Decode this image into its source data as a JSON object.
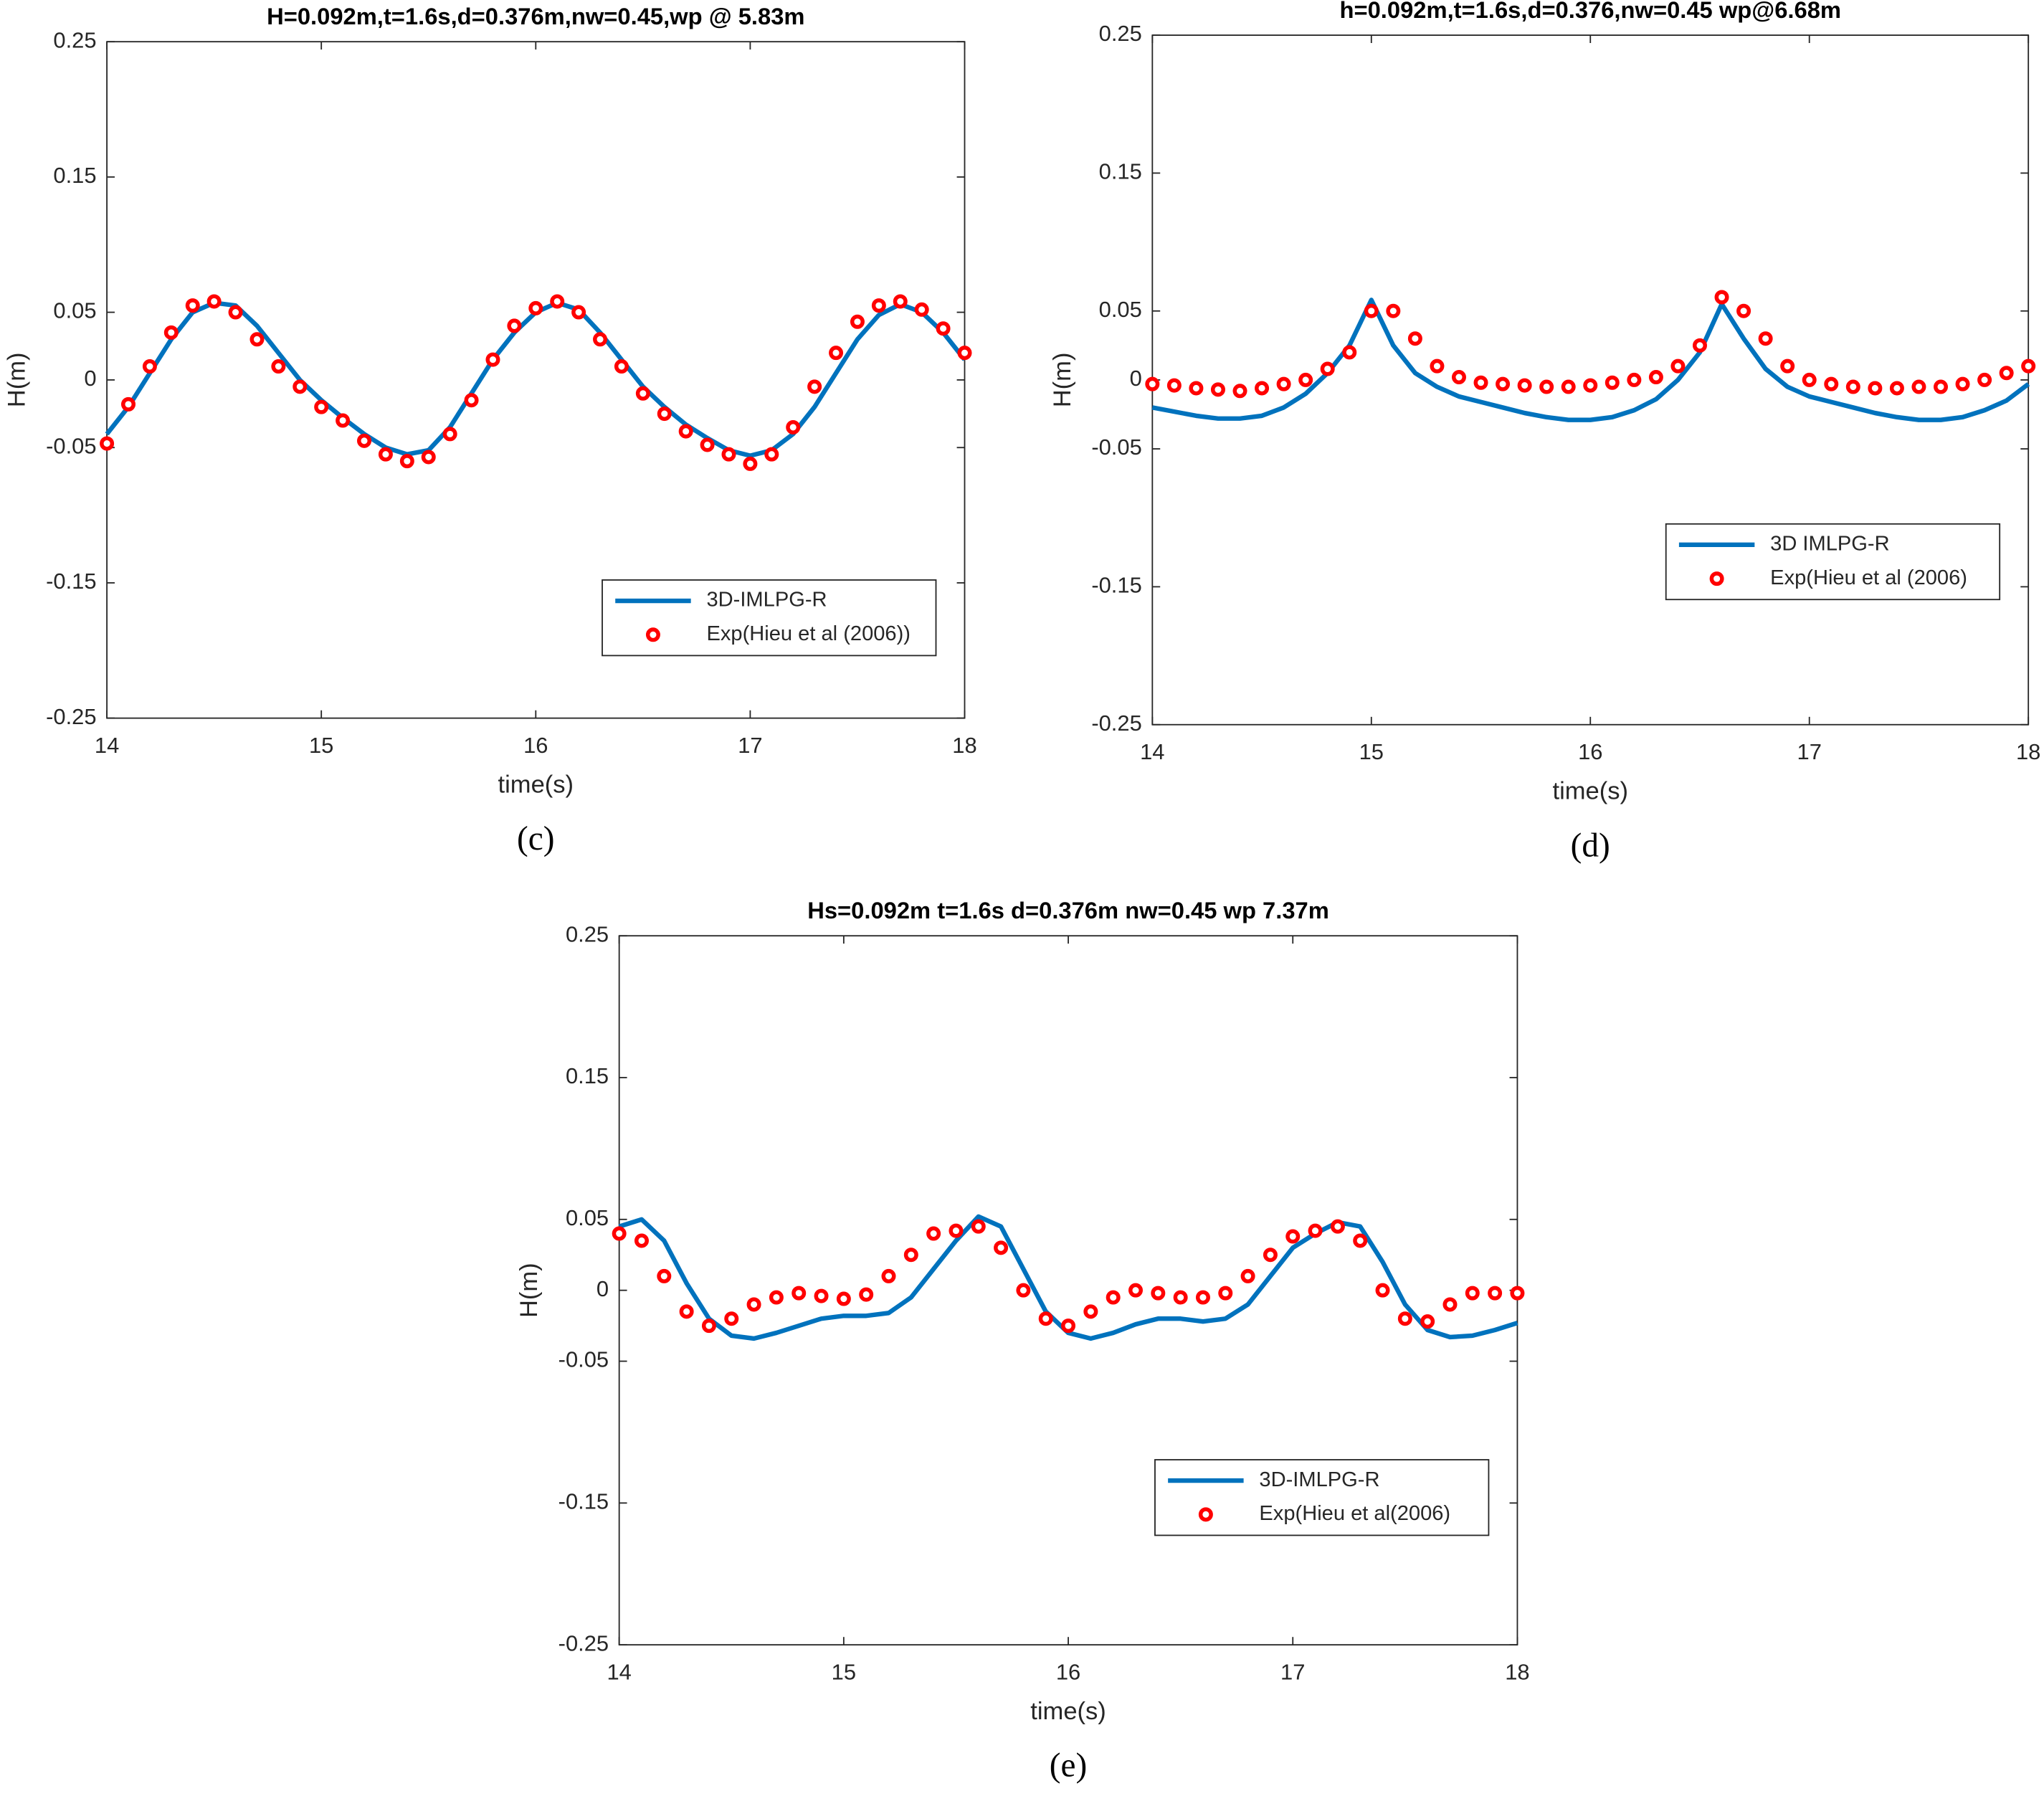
{
  "chart_data": [
    {
      "type": "line",
      "title": "H=0.092m,t=1.6s,d=0.376m,nw=0.45,wp @ 5.83m",
      "label": "(c)",
      "xlabel": "time(s)",
      "ylabel": "H(m)",
      "legend": "lower right",
      "xlim": [
        14,
        18
      ],
      "ylim": [
        -0.25,
        0.25
      ],
      "xticks": [
        14,
        15,
        16,
        17,
        18
      ],
      "yticks": [
        -0.25,
        -0.15,
        -0.05,
        0,
        0.05,
        0.15,
        0.25
      ],
      "x": [
        14,
        14.1,
        14.2,
        14.3,
        14.4,
        14.5,
        14.6,
        14.7,
        14.8,
        14.9,
        15,
        15.1,
        15.2,
        15.3,
        15.4,
        15.5,
        15.6,
        15.7,
        15.8,
        15.9,
        16,
        16.1,
        16.2,
        16.3,
        16.4,
        16.5,
        16.6,
        16.7,
        16.8,
        16.9,
        17,
        17.1,
        17.2,
        17.3,
        17.4,
        17.5,
        17.6,
        17.7,
        17.8,
        17.9,
        18
      ],
      "series": [
        {
          "name": "3D-IMLPG-R",
          "color": "#0072bd",
          "style": "line",
          "values": [
            -0.04,
            -0.02,
            0.005,
            0.03,
            0.05,
            0.057,
            0.055,
            0.04,
            0.02,
            0,
            -0.015,
            -0.028,
            -0.04,
            -0.05,
            -0.055,
            -0.052,
            -0.035,
            -0.01,
            0.015,
            0.035,
            0.05,
            0.057,
            0.052,
            0.035,
            0.015,
            -0.005,
            -0.02,
            -0.033,
            -0.043,
            -0.052,
            -0.056,
            -0.052,
            -0.04,
            -0.02,
            0.005,
            0.03,
            0.048,
            0.056,
            0.05,
            0.035,
            0.015
          ]
        },
        {
          "name": "Exp(Hieu et al (2006))",
          "color": "#ff0000",
          "style": "marker",
          "values": [
            -0.047,
            -0.018,
            0.01,
            0.035,
            0.055,
            0.058,
            0.05,
            0.03,
            0.01,
            -0.005,
            -0.02,
            -0.03,
            -0.045,
            -0.055,
            -0.06,
            -0.057,
            -0.04,
            -0.015,
            0.015,
            0.04,
            0.053,
            0.058,
            0.05,
            0.03,
            0.01,
            -0.01,
            -0.025,
            -0.038,
            -0.048,
            -0.055,
            -0.062,
            -0.055,
            -0.035,
            -0.005,
            0.02,
            0.043,
            0.055,
            0.058,
            0.052,
            0.038,
            0.02
          ]
        }
      ]
    },
    {
      "type": "line",
      "title": "h=0.092m,t=1.6s,d=0.376,nw=0.45 wp@6.68m",
      "label": "(d)",
      "xlabel": "time(s)",
      "ylabel": "H(m)",
      "legend": "lower right",
      "xlim": [
        14,
        18
      ],
      "ylim": [
        -0.25,
        0.25
      ],
      "xticks": [
        14,
        15,
        16,
        17,
        18
      ],
      "yticks": [
        -0.25,
        -0.15,
        -0.05,
        0,
        0.05,
        0.15,
        0.25
      ],
      "x": [
        14,
        14.1,
        14.2,
        14.3,
        14.4,
        14.5,
        14.6,
        14.7,
        14.8,
        14.9,
        15,
        15.1,
        15.2,
        15.3,
        15.4,
        15.5,
        15.6,
        15.7,
        15.8,
        15.9,
        16,
        16.1,
        16.2,
        16.3,
        16.4,
        16.5,
        16.6,
        16.7,
        16.8,
        16.9,
        17,
        17.1,
        17.2,
        17.3,
        17.4,
        17.5,
        17.6,
        17.7,
        17.8,
        17.9,
        18
      ],
      "series": [
        {
          "name": "3D IMLPG-R",
          "color": "#0072bd",
          "style": "line",
          "values": [
            -0.02,
            -0.023,
            -0.026,
            -0.028,
            -0.028,
            -0.026,
            -0.02,
            -0.01,
            0.005,
            0.025,
            0.058,
            0.025,
            0.005,
            -0.005,
            -0.012,
            -0.016,
            -0.02,
            -0.024,
            -0.027,
            -0.029,
            -0.029,
            -0.027,
            -0.022,
            -0.014,
            0,
            0.02,
            0.055,
            0.03,
            0.008,
            -0.005,
            -0.012,
            -0.016,
            -0.02,
            -0.024,
            -0.027,
            -0.029,
            -0.029,
            -0.027,
            -0.022,
            -0.015,
            -0.003
          ]
        },
        {
          "name": "Exp(Hieu et al (2006)",
          "color": "#ff0000",
          "style": "marker",
          "values": [
            -0.003,
            -0.004,
            -0.006,
            -0.007,
            -0.008,
            -0.006,
            -0.003,
            0,
            0.008,
            0.02,
            0.05,
            0.05,
            0.03,
            0.01,
            0.002,
            -0.002,
            -0.003,
            -0.004,
            -0.005,
            -0.005,
            -0.004,
            -0.002,
            0,
            0.002,
            0.01,
            0.025,
            0.06,
            0.05,
            0.03,
            0.01,
            0,
            -0.003,
            -0.005,
            -0.006,
            -0.006,
            -0.005,
            -0.005,
            -0.003,
            0,
            0.005,
            0.01
          ]
        }
      ]
    },
    {
      "type": "line",
      "title": "Hs=0.092m t=1.6s d=0.376m nw=0.45 wp 7.37m",
      "label": "(e)",
      "xlabel": "time(s)",
      "ylabel": "H(m)",
      "legend": "lower right",
      "xlim": [
        14,
        18
      ],
      "ylim": [
        -0.25,
        0.25
      ],
      "xticks": [
        14,
        15,
        16,
        17,
        18
      ],
      "yticks": [
        -0.25,
        -0.15,
        -0.05,
        0,
        0.05,
        0.15,
        0.25
      ],
      "x": [
        14,
        14.1,
        14.2,
        14.3,
        14.4,
        14.5,
        14.6,
        14.7,
        14.8,
        14.9,
        15,
        15.1,
        15.2,
        15.3,
        15.4,
        15.5,
        15.6,
        15.7,
        15.8,
        15.9,
        16,
        16.1,
        16.2,
        16.3,
        16.4,
        16.5,
        16.6,
        16.7,
        16.8,
        16.9,
        17,
        17.1,
        17.2,
        17.3,
        17.4,
        17.5,
        17.6,
        17.7,
        17.8,
        17.9,
        18
      ],
      "series": [
        {
          "name": "3D-IMLPG-R",
          "color": "#0072bd",
          "style": "line",
          "values": [
            0.045,
            0.05,
            0.035,
            0.005,
            -0.02,
            -0.032,
            -0.034,
            -0.03,
            -0.025,
            -0.02,
            -0.018,
            -0.018,
            -0.016,
            -0.005,
            0.015,
            0.035,
            0.052,
            0.045,
            0.015,
            -0.015,
            -0.03,
            -0.034,
            -0.03,
            -0.024,
            -0.02,
            -0.02,
            -0.022,
            -0.02,
            -0.01,
            0.01,
            0.03,
            0.04,
            0.048,
            0.045,
            0.02,
            -0.01,
            -0.028,
            -0.033,
            -0.032,
            -0.028,
            -0.023
          ]
        },
        {
          "name": "Exp(Hieu et al(2006)",
          "color": "#ff0000",
          "style": "marker",
          "values": [
            0.04,
            0.035,
            0.01,
            -0.015,
            -0.025,
            -0.02,
            -0.01,
            -0.005,
            -0.002,
            -0.004,
            -0.006,
            -0.003,
            0.01,
            0.025,
            0.04,
            0.042,
            0.045,
            0.03,
            0,
            -0.02,
            -0.025,
            -0.015,
            -0.005,
            0,
            -0.002,
            -0.005,
            -0.005,
            -0.002,
            0.01,
            0.025,
            0.038,
            0.042,
            0.045,
            0.035,
            0,
            -0.02,
            -0.022,
            -0.01,
            -0.002,
            -0.002,
            -0.002
          ]
        }
      ]
    }
  ]
}
